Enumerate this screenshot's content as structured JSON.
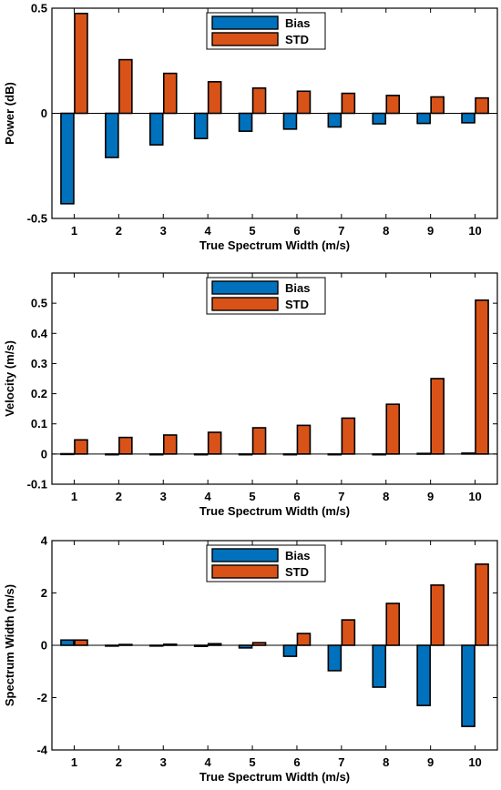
{
  "colors": {
    "bias": "#0072BD",
    "std": "#D95319"
  },
  "chart_data": [
    {
      "type": "bar",
      "categories": [
        "1",
        "2",
        "3",
        "4",
        "5",
        "6",
        "7",
        "8",
        "9",
        "10"
      ],
      "xlabel": "True Spectrum Width (m/s)",
      "ylabel": "Power (dB)",
      "ylim": [
        -0.5,
        0.5
      ],
      "yticks": [
        -0.5,
        0,
        0.5
      ],
      "ytick_labels": [
        "-0.5",
        "0",
        "0.5"
      ],
      "legend": {
        "position": "top-center",
        "entries": [
          "Bias",
          "STD"
        ]
      },
      "series": [
        {
          "name": "Bias",
          "values": [
            -0.43,
            -0.21,
            -0.15,
            -0.12,
            -0.085,
            -0.075,
            -0.065,
            -0.05,
            -0.048,
            -0.045
          ]
        },
        {
          "name": "STD",
          "values": [
            0.475,
            0.255,
            0.19,
            0.15,
            0.12,
            0.105,
            0.095,
            0.085,
            0.078,
            0.073
          ]
        }
      ]
    },
    {
      "type": "bar",
      "categories": [
        "1",
        "2",
        "3",
        "4",
        "5",
        "6",
        "7",
        "8",
        "9",
        "10"
      ],
      "xlabel": "True Spectrum Width (m/s)",
      "ylabel": "Velocity (m/s)",
      "ylim": [
        -0.1,
        0.6
      ],
      "yticks": [
        -0.1,
        0,
        0.1,
        0.2,
        0.3,
        0.4,
        0.5
      ],
      "ytick_labels": [
        "-0.1",
        "0",
        "0.1",
        "0.2",
        "0.3",
        "0.4",
        "0.5"
      ],
      "legend": {
        "position": "top-center",
        "entries": [
          "Bias",
          "STD"
        ]
      },
      "series": [
        {
          "name": "Bias",
          "values": [
            0.001,
            0.0,
            0.0,
            0.0,
            0.0,
            0.0,
            -0.002,
            0.0,
            0.002,
            0.003
          ]
        },
        {
          "name": "STD",
          "values": [
            0.047,
            0.055,
            0.063,
            0.072,
            0.087,
            0.095,
            0.119,
            0.165,
            0.25,
            0.51
          ]
        }
      ]
    },
    {
      "type": "bar",
      "categories": [
        "1",
        "2",
        "3",
        "4",
        "5",
        "6",
        "7",
        "8",
        "9",
        "10"
      ],
      "xlabel": "True Spectrum Width (m/s)",
      "ylabel": "Spectrum Width (m/s)",
      "ylim": [
        -4,
        4
      ],
      "yticks": [
        -4,
        -2,
        0,
        2,
        4
      ],
      "ytick_labels": [
        "-4",
        "-2",
        "0",
        "2",
        "4"
      ],
      "legend": {
        "position": "top-center",
        "entries": [
          "Bias",
          "STD"
        ]
      },
      "series": [
        {
          "name": "Bias",
          "values": [
            0.2,
            -0.03,
            0.0,
            -0.04,
            -0.1,
            -0.42,
            -0.97,
            -1.6,
            -2.3,
            -3.1
          ]
        },
        {
          "name": "STD",
          "values": [
            0.2,
            0.03,
            0.04,
            0.06,
            0.1,
            0.45,
            0.97,
            1.6,
            2.3,
            3.1
          ]
        }
      ]
    }
  ]
}
